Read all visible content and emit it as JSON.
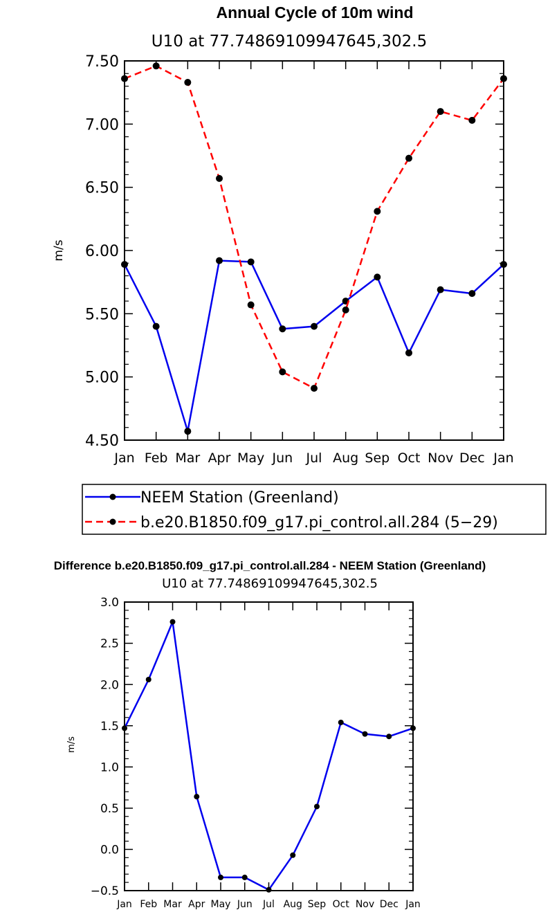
{
  "colors": {
    "observed": "#0000ee",
    "model": "#ff0000",
    "marker": "#000000",
    "diff": "#0000ee"
  },
  "chart_data": [
    {
      "type": "line",
      "title": "Annual Cycle of 10m wind",
      "subtitle": "U10   at  77.74869109947645,302.5",
      "ylabel": "m/s",
      "xlabel": "",
      "categories": [
        "Jan",
        "Feb",
        "Mar",
        "Apr",
        "May",
        "Jun",
        "Jul",
        "Aug",
        "Sep",
        "Oct",
        "Nov",
        "Dec",
        "Jan"
      ],
      "ylim": [
        4.5,
        7.5
      ],
      "yticks": [
        4.5,
        5.0,
        5.5,
        6.0,
        6.5,
        7.0,
        7.5
      ],
      "ytick_labels": [
        "4.50",
        "5.00",
        "5.50",
        "6.00",
        "6.50",
        "7.00",
        "7.50"
      ],
      "series": [
        {
          "name": "NEEM Station (Greenland)",
          "style": "solid",
          "color": "#0000ee",
          "values": [
            5.89,
            5.4,
            4.57,
            5.92,
            5.91,
            5.38,
            5.4,
            5.6,
            5.79,
            5.19,
            5.69,
            5.66,
            5.89
          ]
        },
        {
          "name": "b.e20.B1850.f09_g17.pi_control.all.284 (5−29)",
          "style": "dashed",
          "color": "#ff0000",
          "values": [
            7.36,
            7.46,
            7.33,
            6.57,
            5.57,
            5.04,
            4.91,
            5.53,
            6.31,
            6.73,
            7.1,
            7.03,
            7.36
          ]
        }
      ],
      "legend": "below"
    },
    {
      "type": "line",
      "title": "Difference b.e20.B1850.f09_g17.pi_control.all.284 - NEEM Station (Greenland)",
      "subtitle": "U10   at  77.74869109947645,302.5",
      "ylabel": "m/s",
      "xlabel": "",
      "categories": [
        "Jan",
        "Feb",
        "Mar",
        "Apr",
        "May",
        "Jun",
        "Jul",
        "Aug",
        "Sep",
        "Oct",
        "Nov",
        "Dec",
        "Jan"
      ],
      "ylim": [
        -0.5,
        3.0
      ],
      "yticks": [
        -0.5,
        0.0,
        0.5,
        1.0,
        1.5,
        2.0,
        2.5,
        3.0
      ],
      "ytick_labels": [
        "−0.5",
        "0.0",
        "0.5",
        "1.0",
        "1.5",
        "2.0",
        "2.5",
        "3.0"
      ],
      "series": [
        {
          "name": "Difference",
          "style": "solid",
          "color": "#0000ee",
          "values": [
            1.47,
            2.06,
            2.76,
            0.64,
            -0.34,
            -0.34,
            -0.49,
            -0.07,
            0.52,
            1.54,
            1.4,
            1.37,
            1.47
          ]
        }
      ]
    }
  ]
}
